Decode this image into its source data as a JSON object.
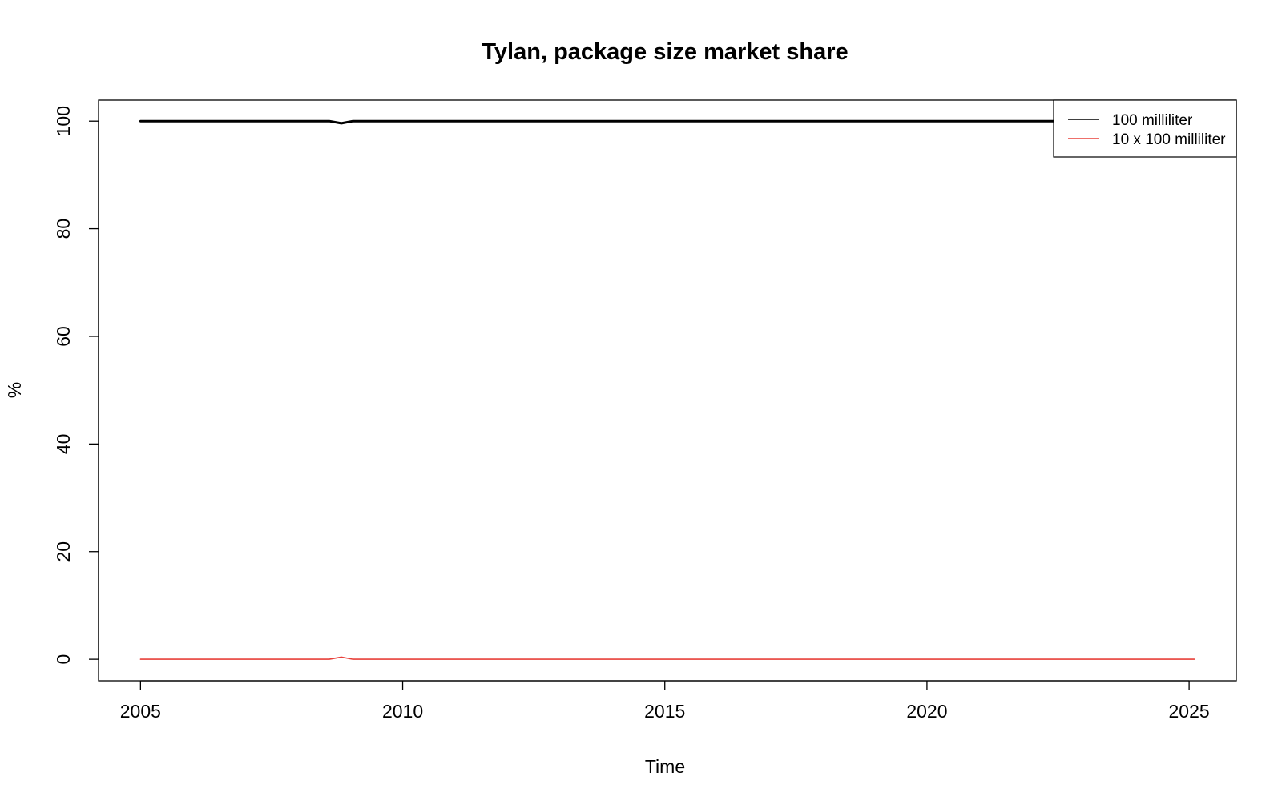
{
  "chart_data": {
    "type": "line",
    "title": "Tylan, package size market share",
    "xlabel": "Time",
    "ylabel": "%",
    "xlim": [
      2004.2,
      2025.9
    ],
    "ylim": [
      -4,
      103.9
    ],
    "x_ticks": [
      2005,
      2010,
      2015,
      2020,
      2025
    ],
    "y_ticks": [
      0,
      20,
      40,
      60,
      80,
      100
    ],
    "grid": false,
    "legend_position": "top-right",
    "series": [
      {
        "name": "100 milliliter",
        "color": "#000000",
        "points": [
          [
            2005.0,
            100
          ],
          [
            2008.6,
            100
          ],
          [
            2008.83,
            99.6
          ],
          [
            2009.05,
            100
          ],
          [
            2025.1,
            100
          ]
        ]
      },
      {
        "name": "10 x 100 milliliter",
        "color": "#e8403a",
        "points": [
          [
            2005.0,
            0
          ],
          [
            2008.6,
            0
          ],
          [
            2008.83,
            0.4
          ],
          [
            2009.05,
            0
          ],
          [
            2025.1,
            0
          ]
        ]
      }
    ]
  }
}
